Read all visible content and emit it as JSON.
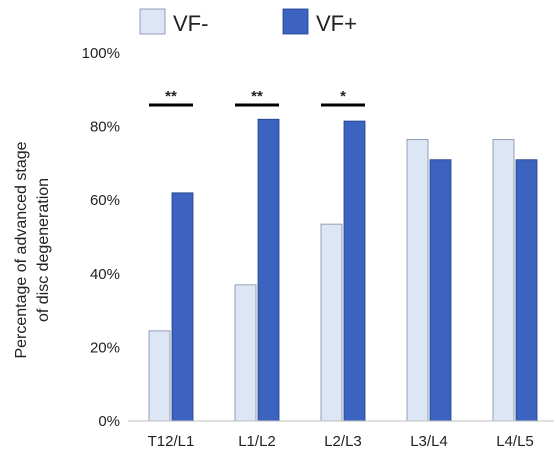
{
  "chart_data": {
    "type": "bar",
    "categories": [
      "T12/L1",
      "L1/L2",
      "L2/L3",
      "L3/L4",
      "L4/L5"
    ],
    "series": [
      {
        "name": "VF-",
        "values": [
          24.5,
          37,
          53.5,
          76.5,
          76.5
        ],
        "color": "#dde6f4",
        "edge": "#7d8aa6"
      },
      {
        "name": "VF+",
        "values": [
          62,
          82,
          81.5,
          71,
          71
        ],
        "color": "#3d63c0",
        "edge": "#1f3c8a"
      }
    ],
    "ylabel_lines": [
      "Percentage of advanced stage",
      "of disc degeneration"
    ],
    "ylim": [
      0,
      100
    ],
    "yticks": [
      0,
      20,
      40,
      60,
      80,
      100
    ],
    "ytick_labels": [
      "0%",
      "20%",
      "40%",
      "60%",
      "80%",
      "100%"
    ],
    "significance": [
      {
        "category": "T12/L1",
        "label": "**"
      },
      {
        "category": "L1/L2",
        "label": "**"
      },
      {
        "category": "L2/L3",
        "label": "*"
      }
    ],
    "legend_position": "top",
    "grid": false
  }
}
